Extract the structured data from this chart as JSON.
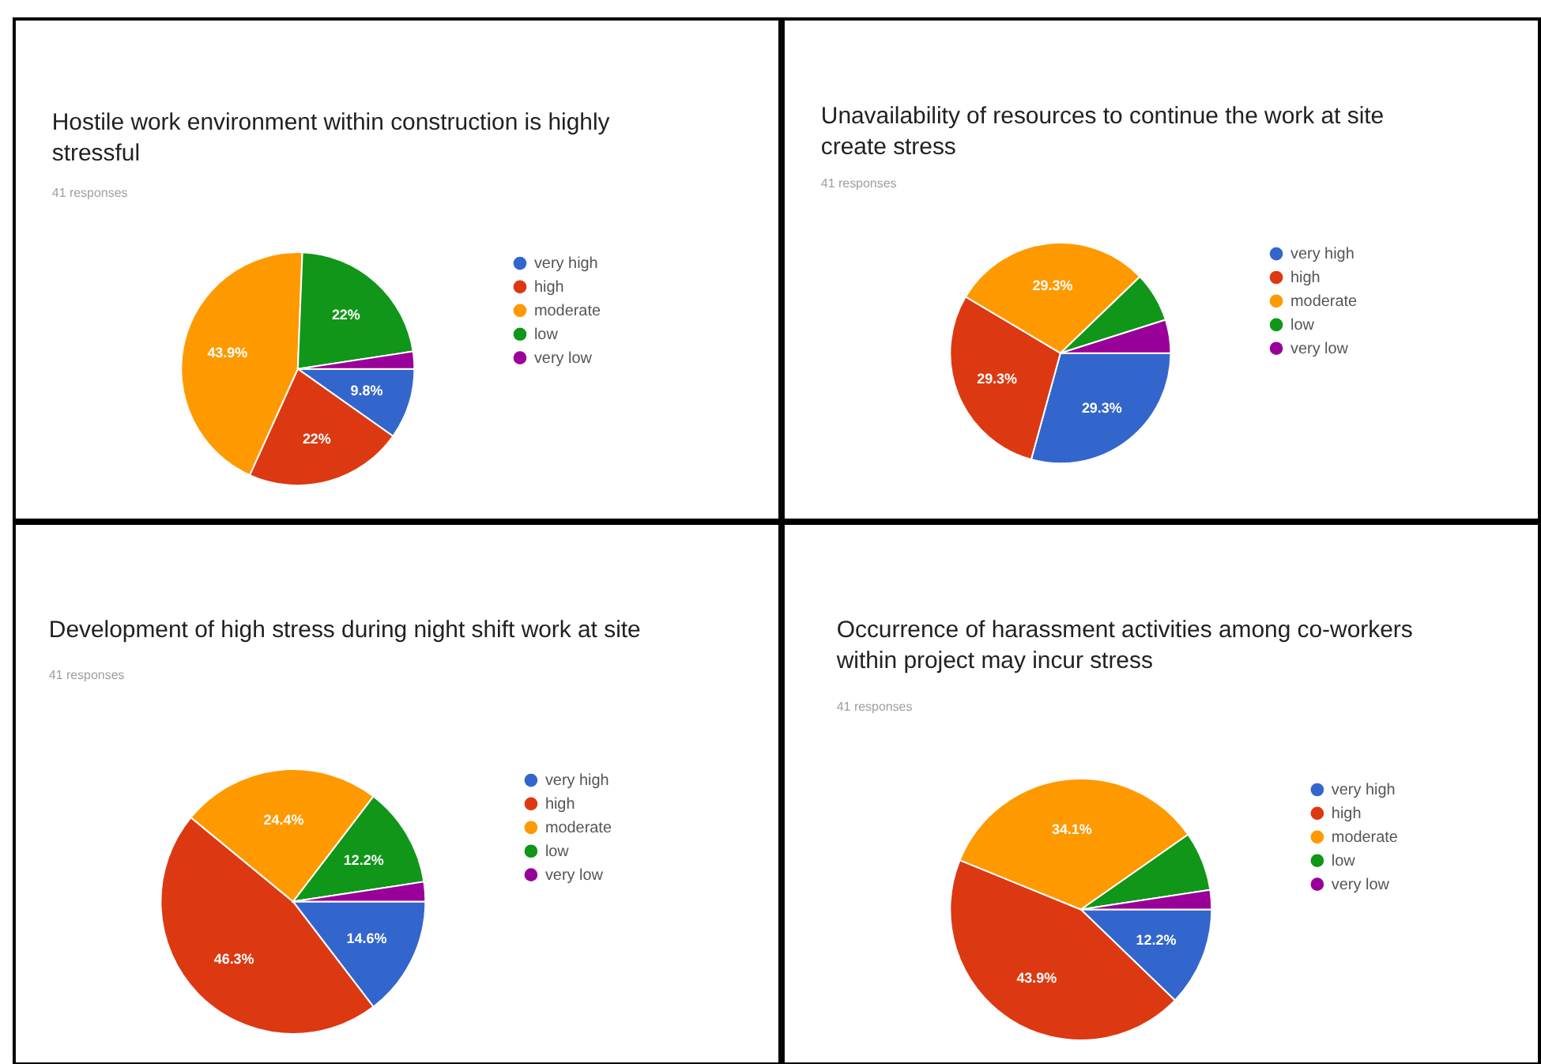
{
  "chart_data": [
    {
      "type": "pie",
      "title": "Hostile work environment within construction is highly stressful",
      "subtitle": "41 responses",
      "categories": [
        "very high",
        "high",
        "moderate",
        "low",
        "very low"
      ],
      "values": [
        9.8,
        22,
        43.9,
        22,
        2.4
      ],
      "colors": [
        "#3366cc",
        "#dc3912",
        "#ff9900",
        "#109618",
        "#990099"
      ],
      "value_labels": [
        "9.8%",
        "22%",
        "43.9%",
        "22%",
        null
      ],
      "legend": "right"
    },
    {
      "type": "pie",
      "title": "Unavailability of resources to continue the work at site create stress",
      "subtitle": "41 responses",
      "categories": [
        "very high",
        "high",
        "moderate",
        "low",
        "very low"
      ],
      "values": [
        29.3,
        29.3,
        29.3,
        7.3,
        4.9
      ],
      "colors": [
        "#3366cc",
        "#dc3912",
        "#ff9900",
        "#109618",
        "#990099"
      ],
      "value_labels": [
        "29.3%",
        "29.3%",
        "29.3%",
        null,
        null
      ],
      "legend": "right"
    },
    {
      "type": "pie",
      "title": "Development of high stress during night shift work at site",
      "subtitle": "41 responses",
      "categories": [
        "very high",
        "high",
        "moderate",
        "low",
        "very low"
      ],
      "values": [
        14.6,
        46.3,
        24.4,
        12.2,
        2.4
      ],
      "colors": [
        "#3366cc",
        "#dc3912",
        "#ff9900",
        "#109618",
        "#990099"
      ],
      "value_labels": [
        "14.6%",
        "46.3%",
        "24.4%",
        "12.2%",
        null
      ],
      "legend": "right"
    },
    {
      "type": "pie",
      "title": "Occurrence of harassment activities among co-workers within project may incur stress",
      "subtitle": "41 responses",
      "categories": [
        "very high",
        "high",
        "moderate",
        "low",
        "very low"
      ],
      "values": [
        12.2,
        43.9,
        34.1,
        7.3,
        2.4
      ],
      "colors": [
        "#3366cc",
        "#dc3912",
        "#ff9900",
        "#109618",
        "#990099"
      ],
      "value_labels": [
        "12.2%",
        "43.9%",
        "34.1%",
        null,
        null
      ],
      "legend": "right"
    }
  ]
}
